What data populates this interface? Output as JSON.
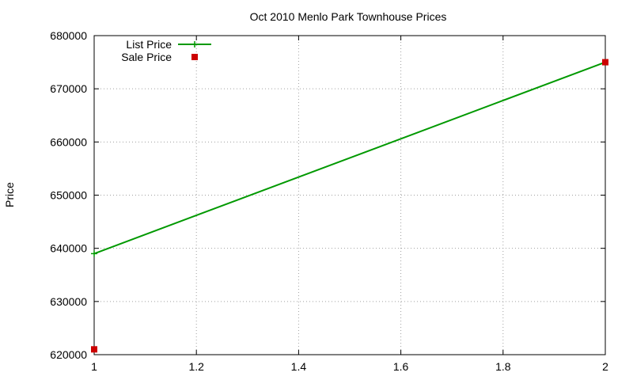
{
  "chart_data": {
    "type": "line",
    "title": "Oct 2010 Menlo Park Townhouse Prices",
    "xlabel": "",
    "ylabel": "Price",
    "xlim": [
      1,
      2
    ],
    "ylim": [
      620000,
      680000
    ],
    "xticks": [
      "1",
      "1.2",
      "1.4",
      "1.6",
      "1.8",
      "2"
    ],
    "xtick_values": [
      1,
      1.2,
      1.4,
      1.6,
      1.8,
      2
    ],
    "yticks": [
      "620000",
      "630000",
      "640000",
      "650000",
      "660000",
      "670000",
      "680000"
    ],
    "ytick_values": [
      620000,
      630000,
      640000,
      650000,
      660000,
      670000,
      680000
    ],
    "grid": true,
    "legend_position": "top-left",
    "series": [
      {
        "name": "List Price",
        "style": "linespoints",
        "marker": "plus",
        "color": "#009900",
        "x": [
          1,
          2
        ],
        "y": [
          639000,
          675000
        ]
      },
      {
        "name": "Sale Price",
        "style": "points",
        "marker": "square",
        "color": "#cc0000",
        "x": [
          1,
          2
        ],
        "y": [
          621000,
          675000
        ]
      }
    ]
  }
}
